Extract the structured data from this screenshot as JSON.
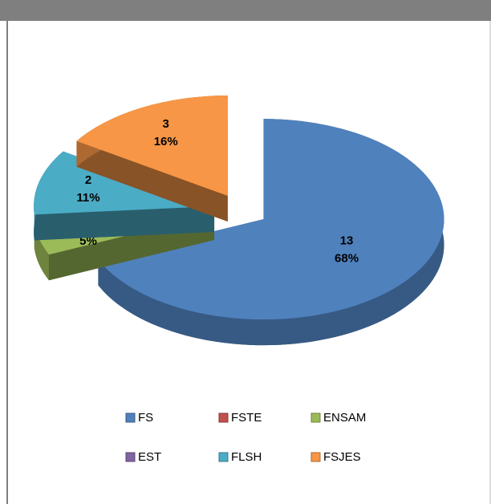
{
  "chart_data": {
    "type": "pie3d",
    "categories": [
      "FS",
      "FSTE",
      "ENSAM",
      "EST",
      "FLSH",
      "FSJES"
    ],
    "values": [
      13,
      0,
      1,
      0,
      2,
      3
    ],
    "percents": [
      68,
      0,
      5,
      0,
      11,
      16
    ],
    "percent_labels": [
      "68%",
      null,
      "5%",
      null,
      "11%",
      "16%"
    ],
    "colors": [
      "#4f81bd",
      "#c0504d",
      "#9bbb59",
      "#8064a2",
      "#4bacc6",
      "#f79646"
    ],
    "legend": "bottom"
  }
}
